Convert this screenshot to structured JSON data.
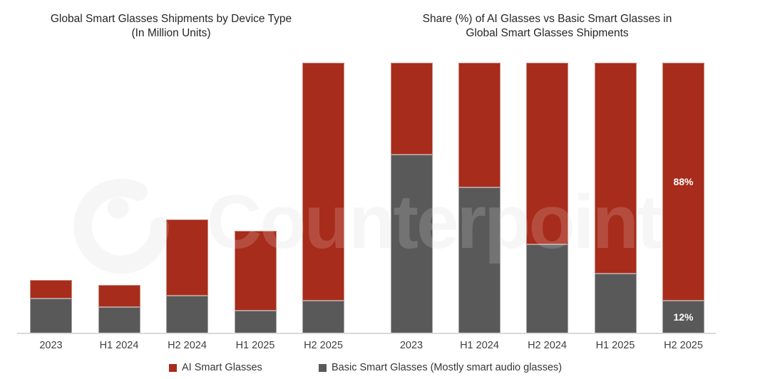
{
  "page": {
    "background": "#FFFFFF"
  },
  "watermark": {
    "text": "Counterpoint",
    "logo": "counterpoint-swirl-logo",
    "color": "#F5F5F5"
  },
  "legend": {
    "items": [
      {
        "label": "AI Smart Glasses",
        "color": "#A72C1B"
      },
      {
        "label": "Basic Smart Glasses (Mostly smart audio glasses)",
        "color": "#595959"
      }
    ]
  },
  "chart_data": [
    {
      "type": "bar",
      "stacked": true,
      "title": "Global Smart Glasses Shipments by Device Type",
      "subtitle": "(In Million Units)",
      "categories": [
        "2023",
        "H1 2024",
        "H2 2024",
        "H1 2025",
        "H2 2025"
      ],
      "series": [
        {
          "name": "Basic Smart Glasses (Mostly smart audio glasses)",
          "key": "basic",
          "color": "#595959",
          "values": [
            13.0,
            9.7,
            14.0,
            8.4,
            12.0
          ]
        },
        {
          "name": "AI Smart Glasses",
          "key": "ai",
          "color": "#A72C1B",
          "values": [
            6.8,
            8.3,
            28.0,
            29.6,
            88.0
          ]
        }
      ],
      "value_axis": {
        "labels_visible": false,
        "units_note": "Y axis unlabeled in figure; values are estimated relative units where the tallest bar (H2 2025 total) = 100"
      },
      "grid": false,
      "legend_position": "bottom"
    },
    {
      "type": "bar",
      "stacked": "100%",
      "title": "Share (%) of AI Glasses vs Basic Smart Glasses in",
      "subtitle": "Global Smart Glasses Shipments",
      "categories": [
        "2023",
        "H1 2024",
        "H2 2024",
        "H1 2025",
        "H2 2025"
      ],
      "series": [
        {
          "name": "Basic Smart Glasses (Mostly smart audio glasses)",
          "key": "basic",
          "color": "#595959",
          "values": [
            66,
            54,
            33,
            22,
            12
          ],
          "data_labels": {
            "H2 2025": "12%"
          }
        },
        {
          "name": "AI Smart Glasses",
          "key": "ai",
          "color": "#A72C1B",
          "values": [
            34,
            46,
            67,
            78,
            88
          ],
          "data_labels": {
            "H2 2025": "88%"
          }
        }
      ],
      "ylim": [
        0,
        100
      ],
      "grid": false,
      "legend_position": "bottom"
    }
  ]
}
